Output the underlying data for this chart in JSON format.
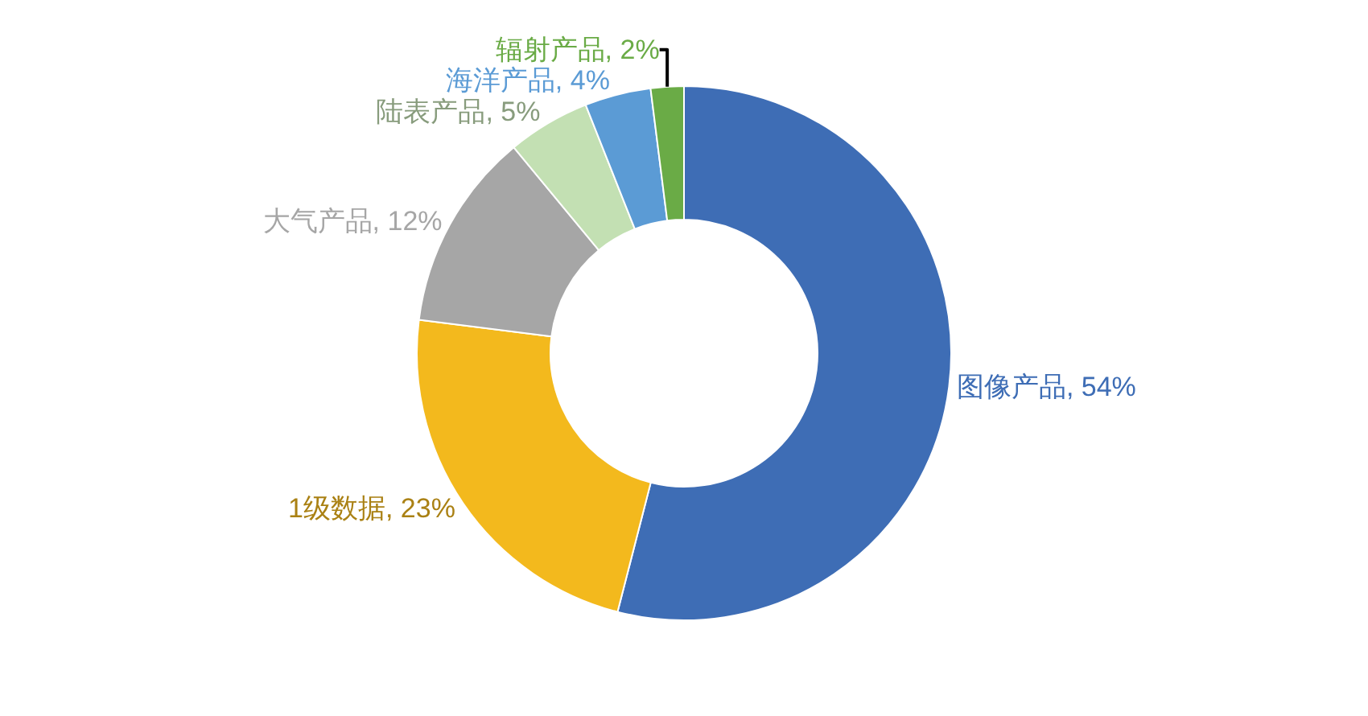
{
  "chart_data": {
    "type": "donut",
    "categories": [
      "图像产品",
      "1级数据",
      "大气产品",
      "陆表产品",
      "海洋产品",
      "辐射产品"
    ],
    "values": [
      54,
      23,
      12,
      5,
      4,
      2
    ],
    "value_labels": [
      "54%",
      "23%",
      "12%",
      "5%",
      "4%",
      "2%"
    ],
    "colors": [
      "#3e6db5",
      "#f3b91d",
      "#a6a6a6",
      "#c3e0b3",
      "#5b9bd5",
      "#6aab46"
    ],
    "legend": false
  }
}
